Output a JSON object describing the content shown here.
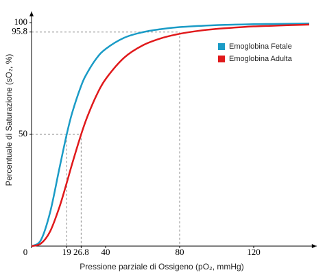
{
  "chart_data": {
    "type": "line",
    "x_label": "Pressione parziale di Ossigeno (pO₂, mmHg)",
    "y_label": "Percentuale di Saturazione (sO₂, %)",
    "x": [
      0,
      5,
      10,
      15,
      19,
      22,
      26.8,
      30,
      35,
      40,
      50,
      60,
      70,
      80,
      90,
      100,
      110,
      120,
      130,
      140,
      150
    ],
    "series": [
      {
        "name": "Emoglobina Fetale",
        "color": "#1a9bc6",
        "values": [
          0,
          2.6,
          15.0,
          34.6,
          50,
          59.8,
          71.7,
          77.4,
          83.9,
          88.2,
          93.2,
          95.7,
          97.1,
          98.0,
          98.5,
          98.9,
          99.1,
          99.3,
          99.4,
          99.5,
          99.6
        ]
      },
      {
        "name": "Emoglobina Adulta",
        "color": "#e0191b",
        "values": [
          0,
          1.1,
          6.5,
          17.3,
          28.3,
          37.0,
          50,
          57.6,
          67.3,
          74.7,
          84.3,
          89.8,
          93.0,
          95.0,
          96.3,
          97.2,
          97.8,
          98.3,
          98.6,
          98.9,
          99.1
        ]
      }
    ],
    "xlim": [
      0,
      154
    ],
    "ylim": [
      0,
      105
    ],
    "xticks": [
      0,
      19,
      26.8,
      40,
      80,
      120
    ],
    "yticks": [
      50,
      95.8,
      100
    ],
    "guides": [
      {
        "x": 19,
        "y": 50
      },
      {
        "x": 26.8,
        "y": 50
      },
      {
        "x": 80,
        "y": 95.8
      }
    ],
    "grid": false,
    "legend": "upper right"
  }
}
